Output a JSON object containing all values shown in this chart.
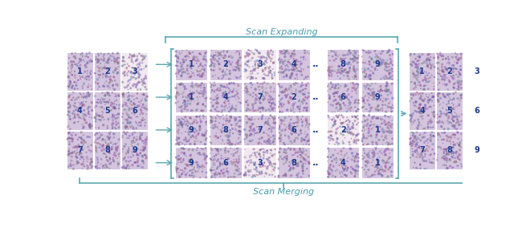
{
  "fig_width": 6.4,
  "fig_height": 2.84,
  "dpi": 100,
  "bg_color": "#ffffff",
  "number_color": "#1a3a8c",
  "arrow_color": "#5ba8b0",
  "bracket_color": "#5ba8b0",
  "text_color": "#4a9ab0",
  "scan_expanding_text": "Scan Expanding",
  "scan_merging_text": "Scan Merging",
  "left_grid_labels": [
    [
      "1",
      "2",
      "3"
    ],
    [
      "4",
      "5",
      "6"
    ],
    [
      "7",
      "8",
      "9"
    ]
  ],
  "middle_rows": [
    [
      "1",
      "2",
      "3",
      "4"
    ],
    [
      "1",
      "4",
      "7",
      "2"
    ],
    [
      "9",
      "8",
      "7",
      "6"
    ],
    [
      "9",
      "6",
      "3",
      "8"
    ]
  ],
  "right_rows": [
    [
      "8",
      "9"
    ],
    [
      "6",
      "9"
    ],
    [
      "2",
      "1"
    ],
    [
      "4",
      "1"
    ]
  ],
  "right_grid_labels": [
    [
      "1",
      "2",
      "3"
    ],
    [
      "4",
      "5",
      "6"
    ],
    [
      "7",
      "8",
      "9"
    ]
  ]
}
